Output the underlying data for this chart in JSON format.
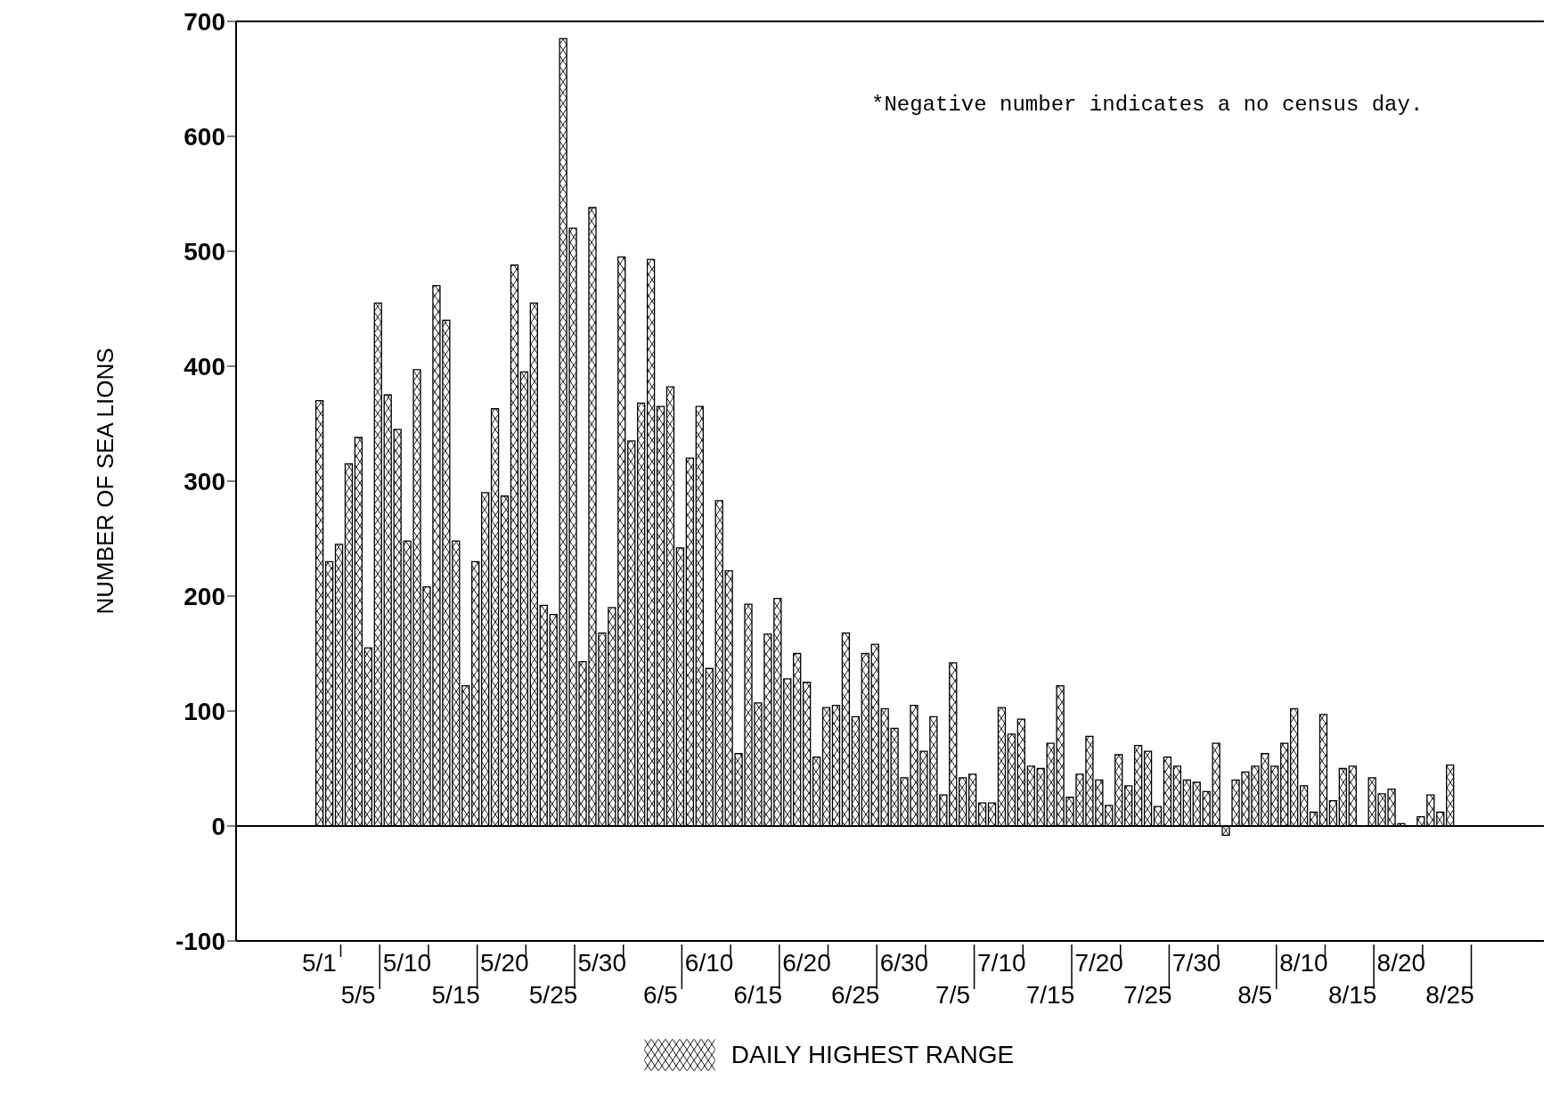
{
  "chart_data": {
    "type": "bar",
    "ylabel": "NUMBER OF SEA LIONS",
    "categories": [
      "5/1",
      null,
      null,
      null,
      "5/5",
      null,
      null,
      null,
      null,
      "5/10",
      null,
      null,
      null,
      null,
      "5/15",
      null,
      null,
      null,
      null,
      "5/20",
      null,
      null,
      null,
      null,
      "5/25",
      null,
      null,
      null,
      null,
      "5/30",
      null,
      null,
      null,
      null,
      null,
      "6/5",
      null,
      null,
      null,
      null,
      "6/10",
      null,
      null,
      null,
      null,
      "6/15",
      null,
      null,
      null,
      null,
      "6/20",
      null,
      null,
      null,
      null,
      "6/25",
      null,
      null,
      null,
      null,
      "6/30",
      null,
      null,
      null,
      null,
      "7/5",
      null,
      null,
      null,
      null,
      "7/10",
      null,
      null,
      null,
      null,
      "7/15",
      null,
      null,
      null,
      null,
      "7/20",
      null,
      null,
      null,
      null,
      "7/25",
      null,
      null,
      null,
      null,
      "7/30",
      null,
      null,
      null,
      null,
      null,
      "8/5",
      null,
      null,
      null,
      null,
      "8/10",
      null,
      null,
      null,
      null,
      "8/15",
      null,
      null,
      null,
      null,
      "8/20",
      null,
      null,
      null,
      null,
      "8/25"
    ],
    "series": [
      {
        "name": "DAILY HIGHEST RANGE",
        "color": "#000000",
        "values": [
          370,
          230,
          245,
          315,
          338,
          155,
          455,
          375,
          345,
          248,
          397,
          208,
          470,
          440,
          248,
          122,
          230,
          290,
          363,
          287,
          488,
          395,
          455,
          192,
          184,
          685,
          520,
          143,
          538,
          168,
          190,
          495,
          335,
          368,
          493,
          365,
          382,
          242,
          320,
          365,
          137,
          283,
          222,
          63,
          193,
          107,
          167,
          198,
          128,
          150,
          125,
          60,
          103,
          105,
          168,
          95,
          150,
          158,
          102,
          85,
          42,
          105,
          65,
          95,
          27,
          142,
          42,
          45,
          20,
          20,
          103,
          80,
          93,
          52,
          50,
          72,
          122,
          25,
          45,
          78,
          40,
          18,
          62,
          35,
          70,
          65,
          17,
          60,
          52,
          40,
          38,
          30,
          72,
          -8,
          40,
          47,
          52,
          63,
          52,
          72,
          102,
          35,
          12,
          97,
          22,
          50,
          52,
          null,
          42,
          28,
          32,
          2,
          null,
          8,
          27,
          12,
          53
        ]
      }
    ],
    "ylim": [
      -100,
      700
    ],
    "yticks": [
      -100,
      0,
      100,
      200,
      300,
      400,
      500,
      600,
      700
    ],
    "ref_lines": [
      {
        "axis": "y",
        "value": 0
      }
    ],
    "annotations": [
      "*Negative number indicates a no census day."
    ],
    "legend": "bottom",
    "grid": false
  }
}
